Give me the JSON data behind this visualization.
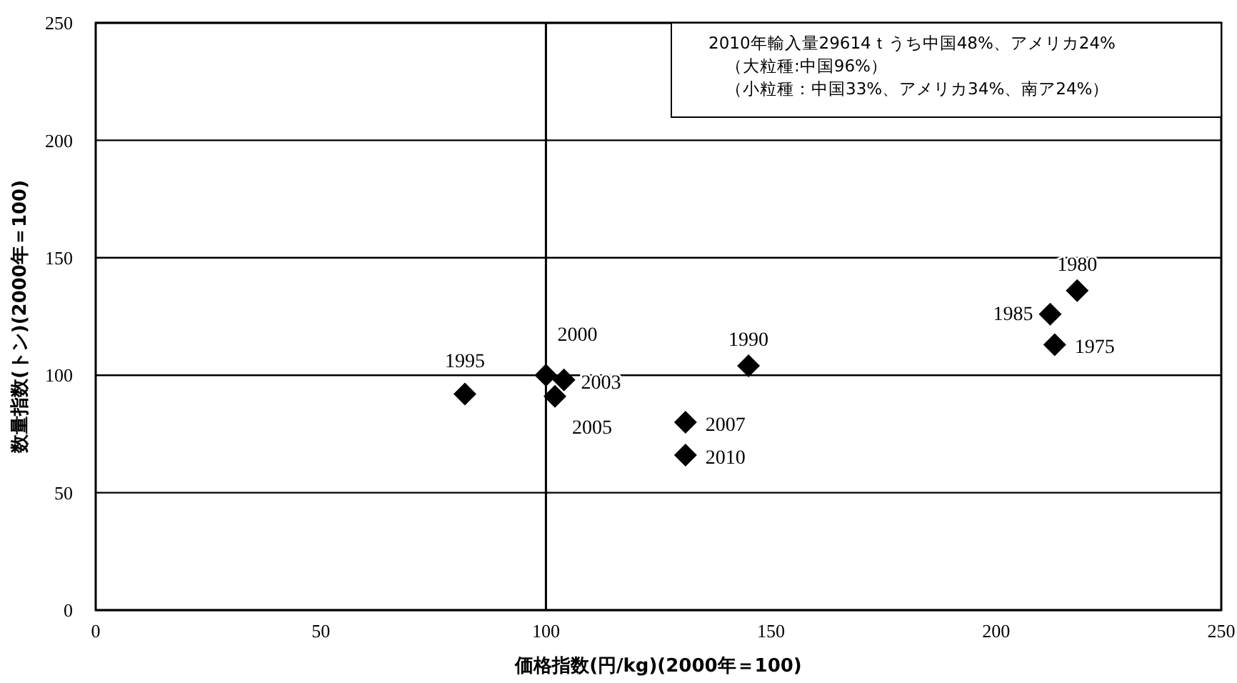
{
  "chart_data": {
    "type": "scatter",
    "xlabel": "価格指数(円/kg)(2000年＝100)",
    "ylabel": "数量指数(トン)(2000年＝100)",
    "x": [
      82,
      100,
      104,
      102,
      131,
      131,
      145,
      212,
      213,
      218
    ],
    "series": [
      {
        "color": "#000000",
        "values": [
          92,
          100,
          98,
          91,
          80,
          66,
          104,
          126,
          113,
          136
        ]
      }
    ],
    "xlim": [
      0,
      250
    ],
    "xticks": [
      0,
      50,
      100,
      150,
      200,
      250
    ],
    "ylim": [
      0,
      250
    ],
    "yticks": [
      0,
      50,
      100,
      150,
      200,
      250
    ],
    "grid": "y",
    "marker": "diamond",
    "ref_lines": [
      {
        "axis": "x",
        "value": 100,
        "color": "#000000"
      }
    ],
    "annotations": [
      {
        "text": "1995",
        "x": 82,
        "y": 92
      },
      {
        "text": "2000",
        "x": 100,
        "y": 100
      },
      {
        "text": "2003",
        "x": 104,
        "y": 98
      },
      {
        "text": "2005",
        "x": 102,
        "y": 91
      },
      {
        "text": "2007",
        "x": 131,
        "y": 80
      },
      {
        "text": "2010",
        "x": 131,
        "y": 66
      },
      {
        "text": "1990",
        "x": 145,
        "y": 104
      },
      {
        "text": "1985",
        "x": 212,
        "y": 126
      },
      {
        "text": "1975",
        "x": 213,
        "y": 113
      },
      {
        "text": "1980",
        "x": 218,
        "y": 136
      },
      "2010年輸入量29614ｔうち中国48%、アメリカ24%",
      "（大粒種:中国96%）",
      "（小粒種：中国33%、アメリカ34%、南ア24%）"
    ]
  }
}
